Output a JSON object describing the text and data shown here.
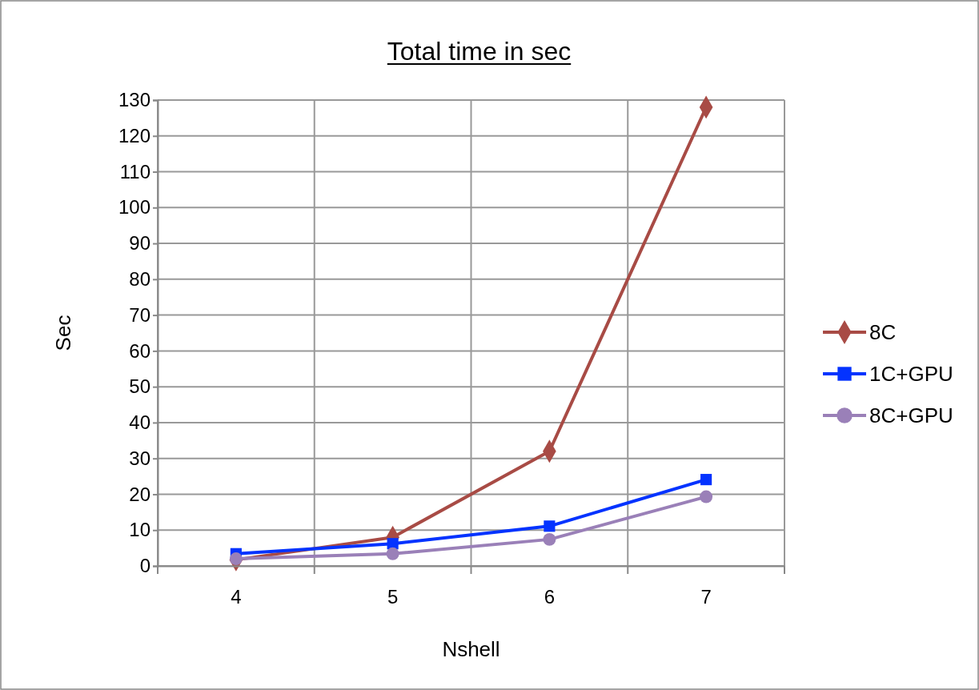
{
  "chart_data": {
    "type": "line",
    "title": "Total time in sec",
    "xlabel": "Nshell",
    "ylabel": "Sec",
    "categories": [
      "4",
      "5",
      "6",
      "7"
    ],
    "series": [
      {
        "name": "8C",
        "color": "#a84b45",
        "values": [
          1.7,
          8,
          32,
          128
        ],
        "marker": "diamond"
      },
      {
        "name": "1C+GPU",
        "color": "#0433ff",
        "values": [
          3.4,
          6.2,
          11.1,
          24.1
        ],
        "marker": "square"
      },
      {
        "name": "8C+GPU",
        "color": "#9a80b8",
        "values": [
          2,
          3.4,
          7.4,
          19.3
        ],
        "marker": "circle"
      }
    ],
    "ylim": [
      0,
      130
    ],
    "yticks": [
      0,
      10,
      20,
      30,
      40,
      50,
      60,
      70,
      80,
      90,
      100,
      110,
      120,
      130
    ],
    "grid": true,
    "legend": "right"
  }
}
